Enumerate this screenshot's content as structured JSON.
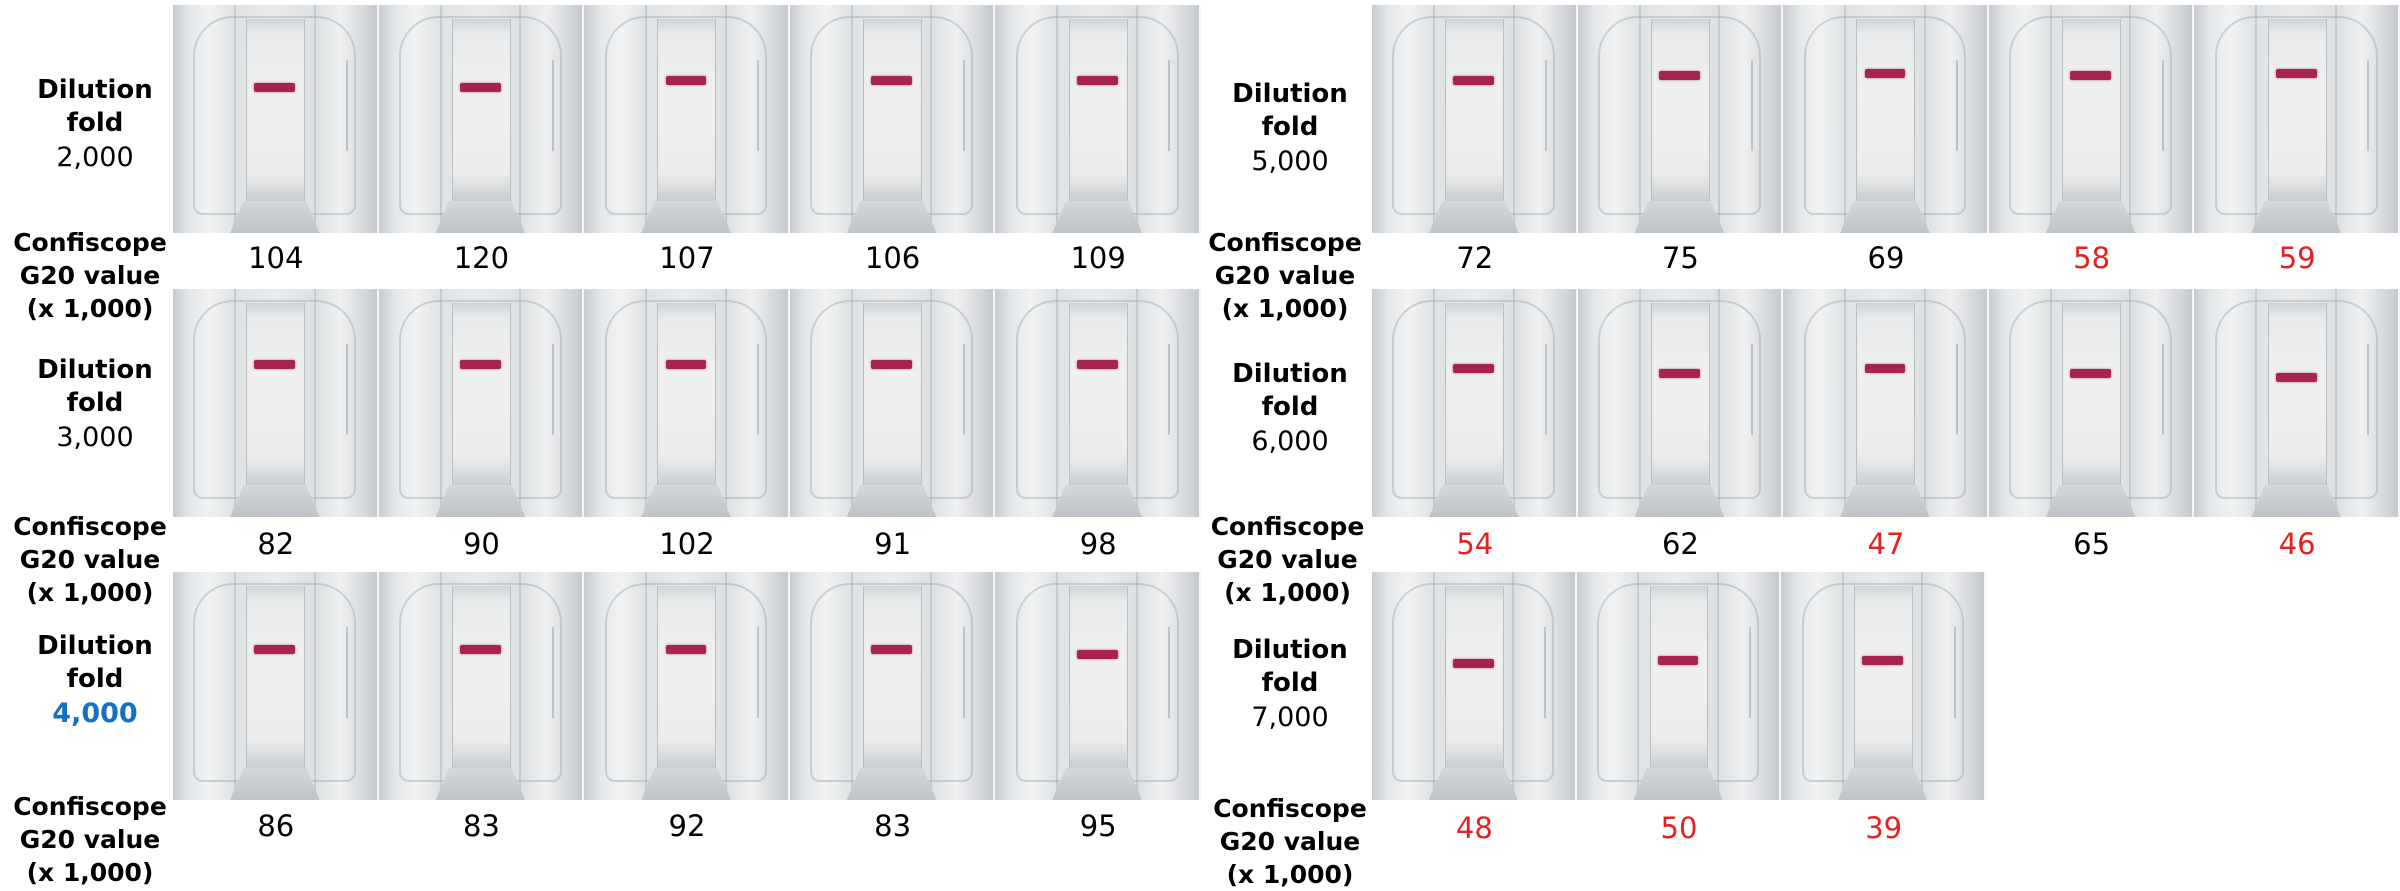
{
  "labels": {
    "dilution": "Dilution",
    "fold": "fold",
    "confiscope": "Confiscope",
    "g20_value": "G20 value",
    "unit": "(x 1,000)"
  },
  "colors": {
    "test_line": "#a8244f",
    "below_threshold": "#e32121",
    "highlight_dilution": "#1670c4"
  },
  "rows": [
    {
      "dilution": "2,000",
      "highlight": false,
      "values": [
        "104",
        "120",
        "107",
        "106",
        "109"
      ],
      "red": [
        false,
        false,
        false,
        false,
        false
      ]
    },
    {
      "dilution": "3,000",
      "highlight": false,
      "values": [
        "82",
        "90",
        "102",
        "91",
        "98"
      ],
      "red": [
        false,
        false,
        false,
        false,
        false
      ]
    },
    {
      "dilution": "4,000",
      "highlight": true,
      "values": [
        "86",
        "83",
        "92",
        "83",
        "95"
      ],
      "red": [
        false,
        false,
        false,
        false,
        false
      ]
    },
    {
      "dilution": "5,000",
      "highlight": false,
      "values": [
        "72",
        "75",
        "69",
        "58",
        "59"
      ],
      "red": [
        false,
        false,
        false,
        true,
        true
      ]
    },
    {
      "dilution": "6,000",
      "highlight": false,
      "values": [
        "54",
        "62",
        "47",
        "65",
        "46"
      ],
      "red": [
        true,
        false,
        true,
        false,
        true
      ]
    },
    {
      "dilution": "7,000",
      "highlight": false,
      "values": [
        "48",
        "50",
        "39"
      ],
      "red": [
        true,
        true,
        true
      ]
    }
  ]
}
